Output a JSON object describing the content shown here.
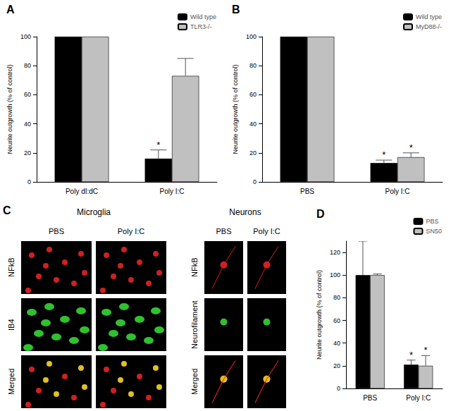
{
  "chart_data": [
    {
      "type": "bar",
      "label": "A",
      "y_label": "Neurite outgrowth (% of control)",
      "categories": [
        "Poly dI:dC",
        "Poly I:C"
      ],
      "series": [
        {
          "name": "Wild type",
          "color": "#000000",
          "values": [
            100,
            16
          ],
          "errors": [
            null,
            6
          ]
        },
        {
          "name": "TLR3-/-",
          "color": "#c0c0c0",
          "values": [
            100,
            73
          ],
          "errors": [
            null,
            12
          ]
        }
      ],
      "annotations": [
        {
          "text": "*",
          "series": "Wild type",
          "category": "Poly I:C"
        }
      ],
      "ylim": [
        0,
        100
      ],
      "yticks": [
        0,
        20,
        40,
        60,
        80,
        100
      ],
      "grid": false,
      "legend": "top-right"
    },
    {
      "type": "bar",
      "label": "B",
      "y_label": "Neurite outgrowth (% of control)",
      "categories": [
        "PBS",
        "Poly I:C"
      ],
      "series": [
        {
          "name": "Wild type",
          "color": "#000000",
          "values": [
            100,
            13
          ],
          "errors": [
            null,
            2
          ]
        },
        {
          "name": "MyD88-/-",
          "color": "#c0c0c0",
          "values": [
            100,
            17
          ],
          "errors": [
            null,
            3
          ]
        }
      ],
      "annotations": [
        {
          "text": "*",
          "series": "Wild type",
          "category": "Poly I:C"
        },
        {
          "text": "*",
          "series": "MyD88-/-",
          "category": "Poly I:C"
        }
      ],
      "ylim": [
        0,
        100
      ],
      "yticks": [
        0,
        20,
        40,
        60,
        80,
        100
      ],
      "grid": false,
      "legend": "top-right"
    },
    {
      "type": "bar",
      "label": "D",
      "y_label": "Neurite outgrowth (% of control)",
      "categories": [
        "PBS",
        "Poly I:C"
      ],
      "series": [
        {
          "name": "PBS",
          "color": "#000000",
          "values": [
            100,
            21
          ],
          "errors": [
            30,
            4
          ]
        },
        {
          "name": "SN50",
          "color": "#c0c0c0",
          "values": [
            100,
            20
          ],
          "errors": [
            1,
            9
          ]
        }
      ],
      "annotations": [
        {
          "text": "*",
          "series": "PBS",
          "category": "Poly I:C"
        },
        {
          "text": "*",
          "series": "SN50",
          "category": "Poly I:C"
        }
      ],
      "ylim": [
        0,
        130
      ],
      "yticks": [
        0,
        20,
        40,
        60,
        80,
        100,
        120
      ],
      "grid": false,
      "legend": "top-right"
    }
  ],
  "panel_c": {
    "label": "C",
    "groups": [
      {
        "title": "Microglia",
        "columns": [
          "PBS",
          "Poly I:C"
        ],
        "rows": [
          "NFkB",
          "IB4",
          "Merged"
        ]
      },
      {
        "title": "Neurons",
        "columns": [
          "PBS",
          "Poly I:C"
        ],
        "rows": [
          "NFkB",
          "Neurofilament",
          "Merged"
        ]
      }
    ]
  }
}
